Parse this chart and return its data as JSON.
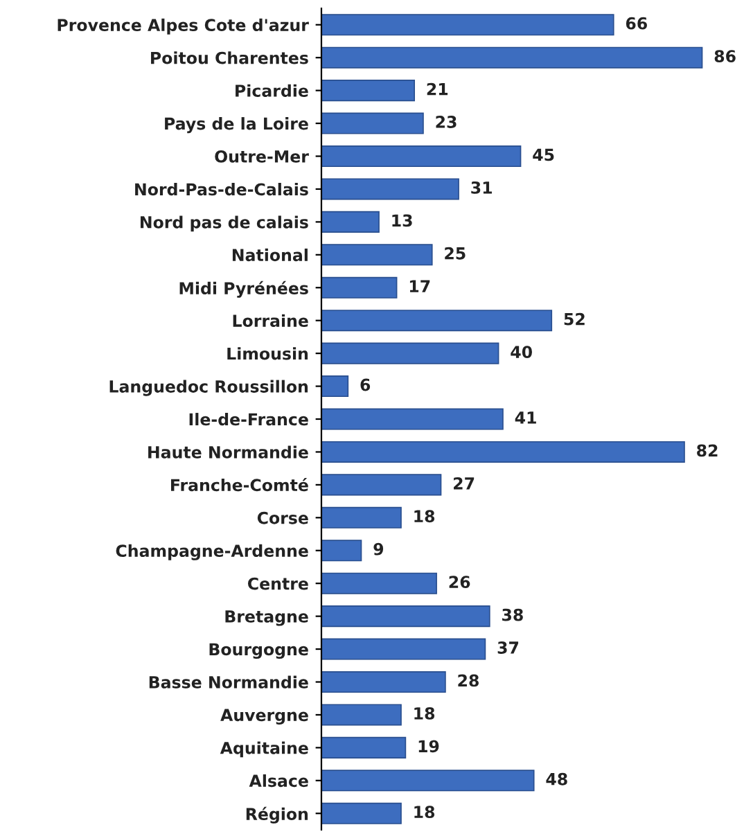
{
  "chart_data": {
    "type": "bar",
    "orientation": "horizontal",
    "categories": [
      "Provence Alpes Cote d'azur",
      "Poitou Charentes",
      "Picardie",
      "Pays de la Loire",
      "Outre-Mer",
      "Nord-Pas-de-Calais",
      "Nord pas de calais",
      "National",
      "Midi Pyrénées",
      "Lorraine",
      "Limousin",
      "Languedoc Roussillon",
      "Ile-de-France",
      "Haute Normandie",
      "Franche-Comté",
      "Corse",
      "Champagne-Ardenne",
      "Centre",
      "Bretagne",
      "Bourgogne",
      "Basse Normandie",
      "Auvergne",
      "Aquitaine",
      "Alsace",
      "Région"
    ],
    "values": [
      66,
      86,
      21,
      23,
      45,
      31,
      13,
      25,
      17,
      52,
      40,
      6,
      41,
      82,
      27,
      18,
      9,
      26,
      38,
      37,
      28,
      18,
      19,
      48,
      18
    ],
    "color": "#3d6dbf",
    "data_labels": true,
    "grid": false,
    "legend": false
  }
}
